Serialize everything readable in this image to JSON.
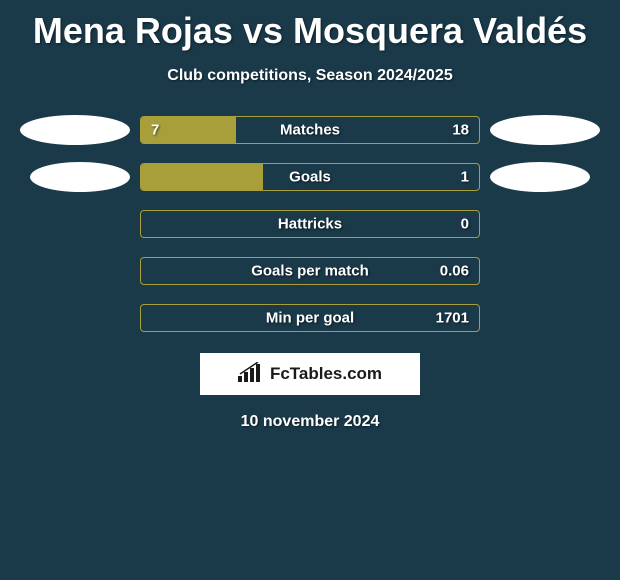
{
  "title": "Mena Rojas vs Mosquera Valdés",
  "subtitle": "Club competitions, Season 2024/2025",
  "colors": {
    "background": "#1a3a4a",
    "bar_fill": "#a89f3a",
    "bar_border": "#a89f3a",
    "avatar": "#ffffff"
  },
  "stats": [
    {
      "label": "Matches",
      "left_value": "7",
      "right_value": "18",
      "left_pct": 28,
      "right_pct": 0
    },
    {
      "label": "Goals",
      "left_value": "",
      "right_value": "1",
      "left_pct": 36,
      "right_pct": 0
    },
    {
      "label": "Hattricks",
      "left_value": "",
      "right_value": "0",
      "left_pct": 0,
      "right_pct": 0
    },
    {
      "label": "Goals per match",
      "left_value": "",
      "right_value": "0.06",
      "left_pct": 0,
      "right_pct": 0
    },
    {
      "label": "Min per goal",
      "left_value": "",
      "right_value": "1701",
      "left_pct": 0,
      "right_pct": 0
    }
  ],
  "brand": "FcTables.com",
  "date": "10 november 2024"
}
